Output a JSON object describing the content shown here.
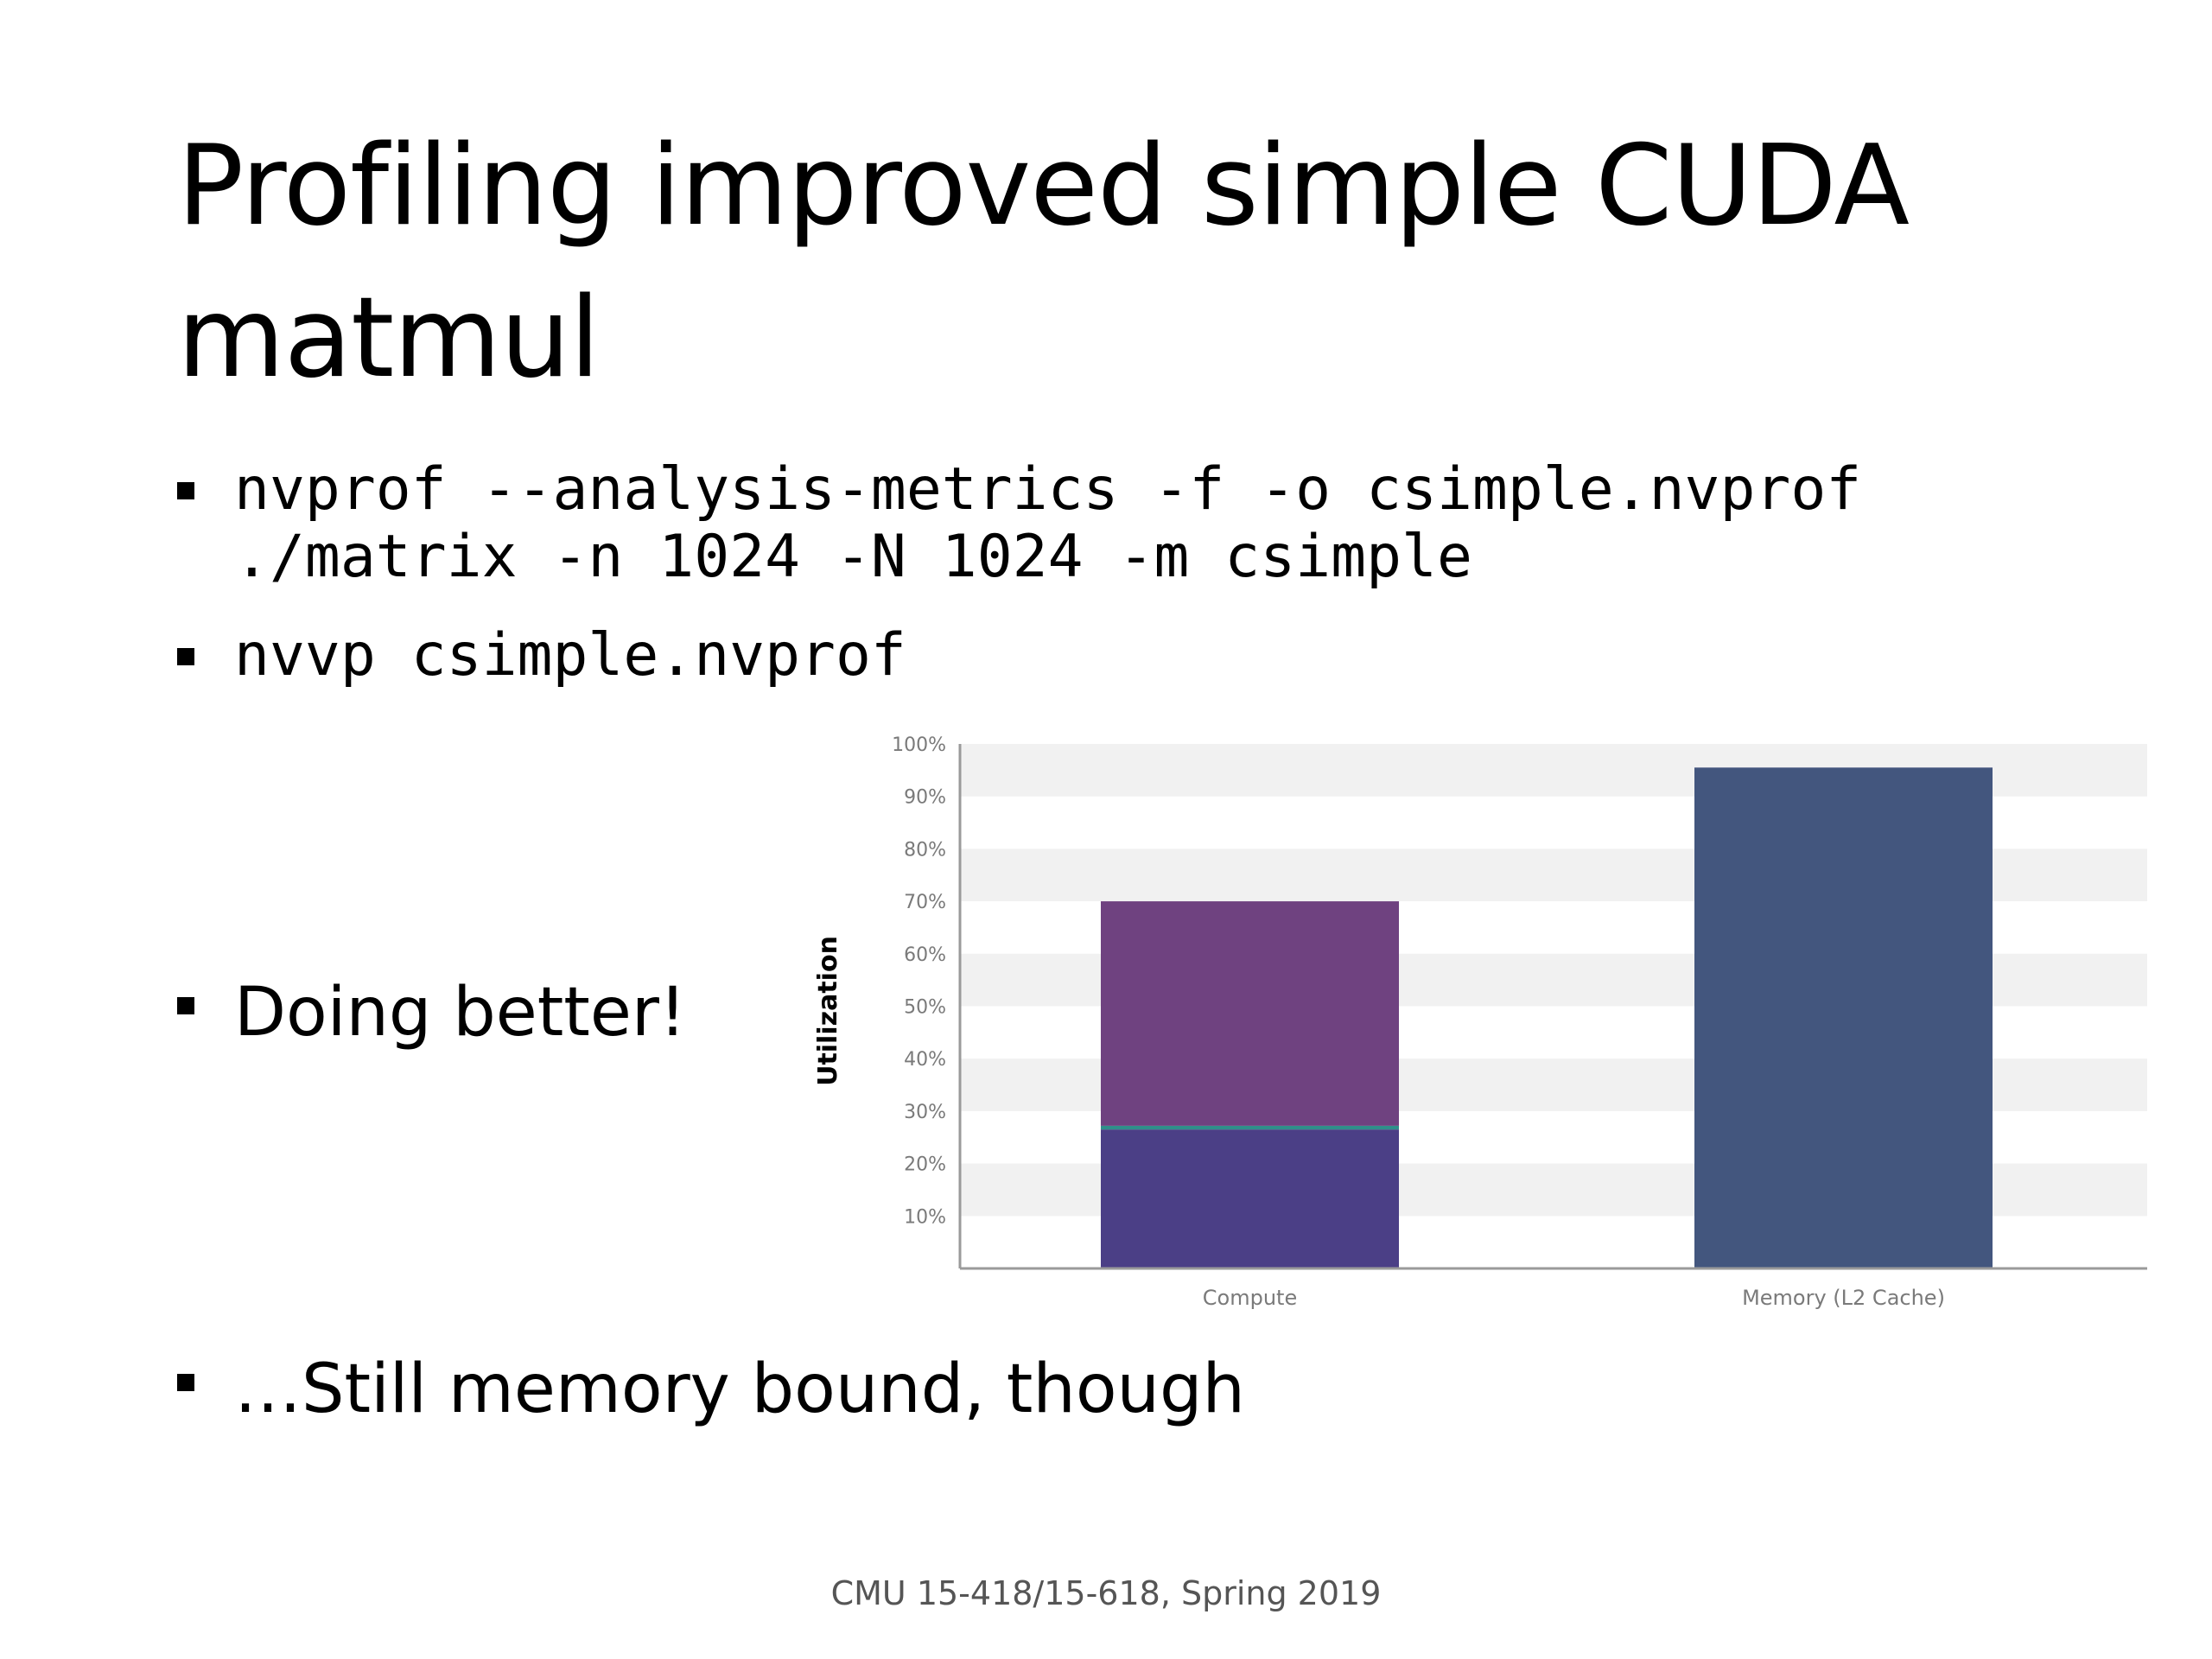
{
  "slide": {
    "title": "Profiling improved simple CUDA matmul",
    "bullets": {
      "cmd1_line1": "nvprof --analysis-metrics -f -o csimple.nvprof",
      "cmd1_line2": "./matrix -n 1024 -N 1024 -m csimple",
      "cmd2": "nvvp csimple.nvprof",
      "doing_better": "Doing better!",
      "still_memory_bound": "…Still memory bound, though"
    },
    "footer": "CMU 15-418/15-618, Spring 2019"
  },
  "chart_data": {
    "type": "bar",
    "stacked": true,
    "ylabel": "Utilization",
    "ylim": [
      0,
      100
    ],
    "yticks": [
      "10%",
      "20%",
      "30%",
      "40%",
      "50%",
      "60%",
      "70%",
      "80%",
      "90%",
      "100%"
    ],
    "categories": [
      "Compute",
      "Memory (L2 Cache)"
    ],
    "segments": [
      {
        "category": "Compute",
        "from": 0,
        "to": 26.5,
        "color": "#4b3f86"
      },
      {
        "category": "Compute",
        "from": 26.5,
        "to": 27.2,
        "color": "#2f8f8a"
      },
      {
        "category": "Compute",
        "from": 27.2,
        "to": 70,
        "color": "#6f4280"
      },
      {
        "category": "Memory (L2 Cache)",
        "from": 0,
        "to": 95.5,
        "color": "#43567e"
      }
    ],
    "grid_bands": true,
    "colors": {
      "band": "#f1f1f1",
      "axis": "#9a9a9a",
      "tick_text": "#7a7a7a"
    }
  }
}
